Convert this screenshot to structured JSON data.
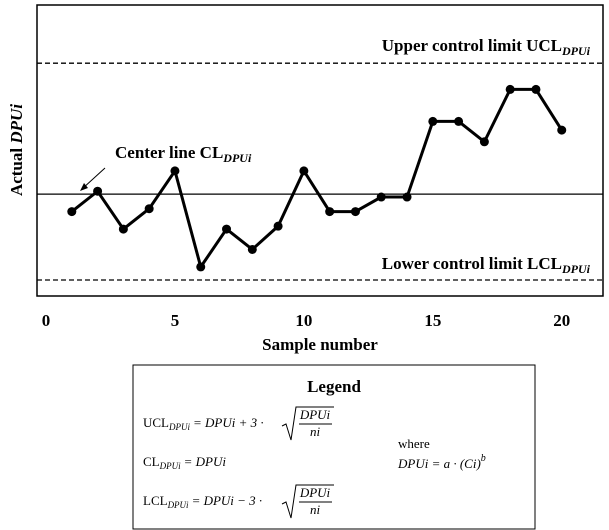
{
  "chart_data": {
    "type": "line",
    "x": [
      1,
      2,
      3,
      4,
      5,
      6,
      7,
      8,
      9,
      10,
      11,
      12,
      13,
      14,
      15,
      16,
      17,
      18,
      19,
      20
    ],
    "series": [
      {
        "color": "#000000",
        "values": [
          2.9,
          3.6,
          2.3,
          3.0,
          4.3,
          1.0,
          2.3,
          1.6,
          2.4,
          4.3,
          2.9,
          2.9,
          3.4,
          3.4,
          6.0,
          6.0,
          5.3,
          7.1,
          7.1,
          5.7
        ]
      }
    ],
    "xlim": [
      -0.35,
      21.6
    ],
    "xticks": [
      0,
      5,
      10,
      15,
      20
    ],
    "ylim": [
      0,
      10
    ],
    "xlabel": "Sample number",
    "ylabel": {
      "text": "Actual",
      "var": "DPUi"
    },
    "limits": [
      {
        "name": "Upper control limit UCL",
        "sub": "DPUi",
        "value": 8.0,
        "style": "dashed"
      },
      {
        "name": "Center line CL",
        "sub": "DPUi",
        "value": 3.5,
        "style": "solid"
      },
      {
        "name": "Lower control limit LCL",
        "sub": "DPUi",
        "value": 0.55,
        "style": "dashed"
      }
    ]
  },
  "legend": {
    "title": "Legend",
    "ucl": {
      "lhs": "UCL",
      "sub": "DPUi",
      "rhs": "= DPUi + 3 ·",
      "num": "DPUi",
      "den": "ni"
    },
    "cl": {
      "lhs": "CL",
      "sub": "DPUi",
      "rhs": "= DPUi"
    },
    "lcl": {
      "lhs": "LCL",
      "sub": "DPUi",
      "rhs": "= DPUi − 3 ·",
      "num": "DPUi",
      "den": "ni"
    },
    "where": "where",
    "def": {
      "lhs": "DPUi = a · (Ci)",
      "sup": "b"
    }
  }
}
